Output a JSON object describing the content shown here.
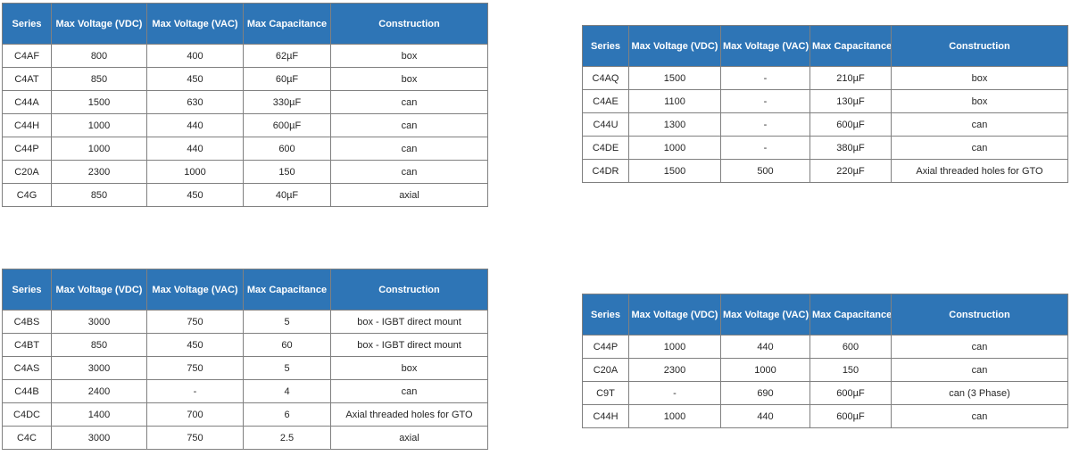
{
  "colors": {
    "header_bg": "#2E75B6",
    "header_text": "#FFFFFF",
    "border": "#808080",
    "cell_text": "#262626",
    "page_bg": "#FFFFFF"
  },
  "columns": [
    "Series",
    "Max Voltage (VDC)",
    "Max Voltage (VAC)",
    "Max Capacitance",
    "Construction"
  ],
  "tables": [
    {
      "name": "top-left",
      "rows": [
        [
          "C4AF",
          "800",
          "400",
          "62µF",
          "box"
        ],
        [
          "C4AT",
          "850",
          "450",
          "60µF",
          "box"
        ],
        [
          "C44A",
          "1500",
          "630",
          "330µF",
          "can"
        ],
        [
          "C44H",
          "1000",
          "440",
          "600µF",
          "can"
        ],
        [
          "C44P",
          "1000",
          "440",
          "600",
          "can"
        ],
        [
          "C20A",
          "2300",
          "1000",
          "150",
          "can"
        ],
        [
          "C4G",
          "850",
          "450",
          "40µF",
          "axial"
        ]
      ]
    },
    {
      "name": "top-right",
      "rows": [
        [
          "C4AQ",
          "1500",
          "-",
          "210µF",
          "box"
        ],
        [
          "C4AE",
          "1100",
          "-",
          "130µF",
          "box"
        ],
        [
          "C44U",
          "1300",
          "-",
          "600µF",
          "can"
        ],
        [
          "C4DE",
          "1000",
          "-",
          "380µF",
          "can"
        ],
        [
          "C4DR",
          "1500",
          "500",
          "220µF",
          "Axial threaded holes for GTO"
        ]
      ]
    },
    {
      "name": "bottom-left",
      "rows": [
        [
          "C4BS",
          "3000",
          "750",
          "5",
          "box - IGBT direct mount"
        ],
        [
          "C4BT",
          "850",
          "450",
          "60",
          "box - IGBT direct mount"
        ],
        [
          "C4AS",
          "3000",
          "750",
          "5",
          "box"
        ],
        [
          "C44B",
          "2400",
          "-",
          "4",
          "can"
        ],
        [
          "C4DC",
          "1400",
          "700",
          "6",
          "Axial threaded holes for GTO"
        ],
        [
          "C4C",
          "3000",
          "750",
          "2.5",
          "axial"
        ]
      ]
    },
    {
      "name": "bottom-right",
      "rows": [
        [
          "C44P",
          "1000",
          "440",
          "600",
          "can"
        ],
        [
          "C20A",
          "2300",
          "1000",
          "150",
          "can"
        ],
        [
          "C9T",
          "-",
          "690",
          "600µF",
          "can (3 Phase)"
        ],
        [
          "C44H",
          "1000",
          "440",
          "600µF",
          "can"
        ]
      ]
    }
  ]
}
